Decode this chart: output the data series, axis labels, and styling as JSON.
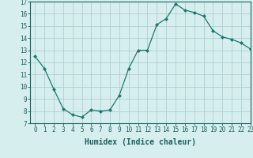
{
  "x": [
    0,
    1,
    2,
    3,
    4,
    5,
    6,
    7,
    8,
    9,
    10,
    11,
    12,
    13,
    14,
    15,
    16,
    17,
    18,
    19,
    20,
    21,
    22,
    23
  ],
  "y": [
    12.5,
    11.5,
    9.8,
    8.2,
    7.7,
    7.5,
    8.1,
    8.0,
    8.1,
    9.3,
    11.5,
    13.0,
    13.0,
    15.1,
    15.6,
    16.8,
    16.3,
    16.1,
    15.8,
    14.6,
    14.1,
    13.9,
    13.6,
    13.1
  ],
  "line_color": "#1a7a6e",
  "marker": "D",
  "marker_size": 2.0,
  "bg_color": "#d6eeee",
  "grid_color": "#b0d0d0",
  "xlabel": "Humidex (Indice chaleur)",
  "ylim": [
    7,
    17
  ],
  "xlim": [
    -0.5,
    23
  ],
  "yticks": [
    7,
    8,
    9,
    10,
    11,
    12,
    13,
    14,
    15,
    16,
    17
  ],
  "xticks": [
    0,
    1,
    2,
    3,
    4,
    5,
    6,
    7,
    8,
    9,
    10,
    11,
    12,
    13,
    14,
    15,
    16,
    17,
    18,
    19,
    20,
    21,
    22,
    23
  ],
  "tick_fontsize": 5.5,
  "xlabel_fontsize": 7.0,
  "tick_color": "#1a6060",
  "spine_color": "#1a6060"
}
